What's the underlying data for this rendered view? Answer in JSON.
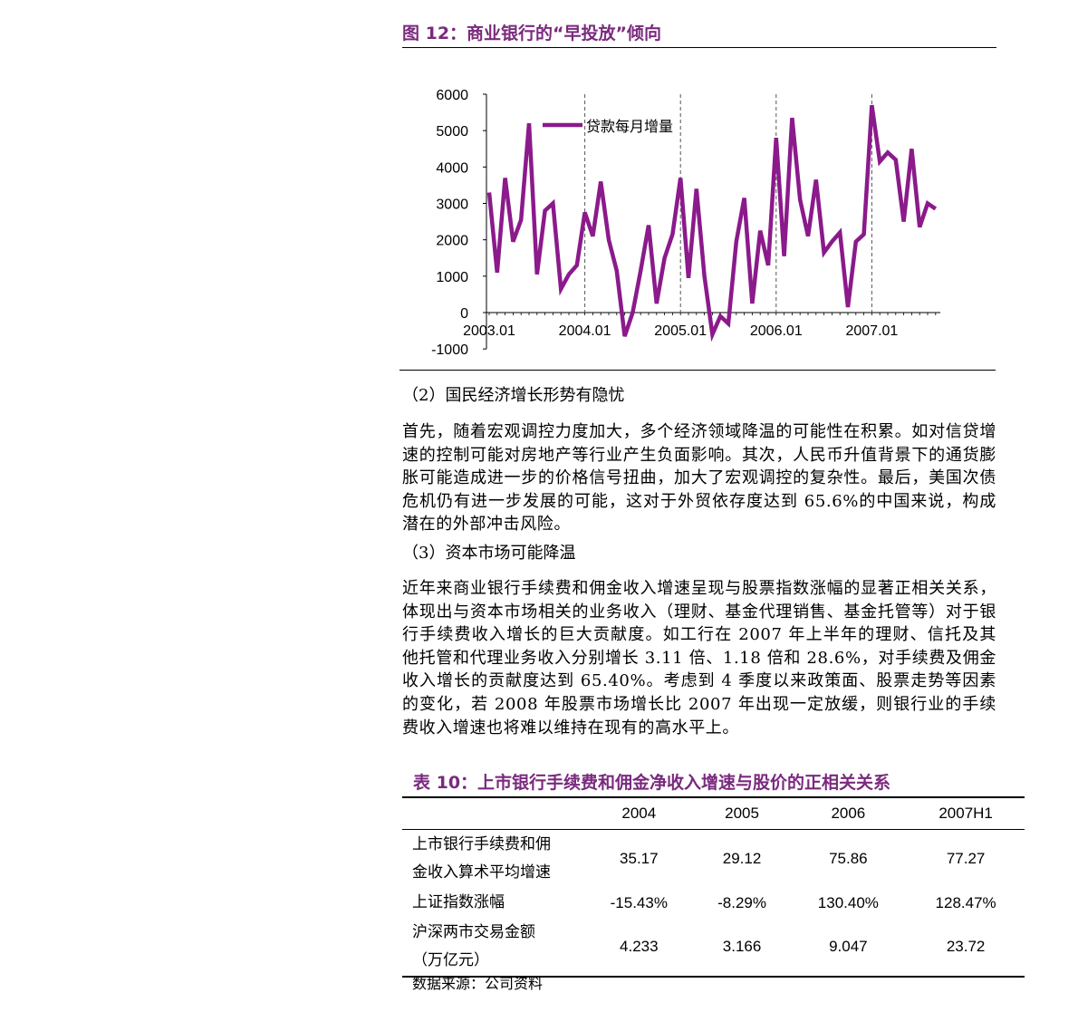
{
  "figure": {
    "title": "图 12：商业银行的“早投放”倾向"
  },
  "chart_data": {
    "type": "line",
    "title": "",
    "xlabel": "",
    "ylabel": "",
    "ylim": [
      -1000,
      6000
    ],
    "y_ticks": [
      "6000",
      "5000",
      "4000",
      "3000",
      "2000",
      "1000",
      "0",
      "-1000"
    ],
    "x_tick_labels": [
      "2003.01",
      "2004.01",
      "2005.01",
      "2006.01",
      "2007.01"
    ],
    "legend_position": "top-left",
    "grid": false,
    "line_color": "#8B1A8B",
    "series": [
      {
        "name": "贷款每月增量",
        "x": [
          "2003.01",
          "2003.02",
          "2003.03",
          "2003.04",
          "2003.05",
          "2003.06",
          "2003.07",
          "2003.08",
          "2003.09",
          "2003.10",
          "2003.11",
          "2003.12",
          "2004.01",
          "2004.02",
          "2004.03",
          "2004.04",
          "2004.05",
          "2004.06",
          "2004.07",
          "2004.08",
          "2004.09",
          "2004.10",
          "2004.11",
          "2004.12",
          "2005.01",
          "2005.02",
          "2005.03",
          "2005.04",
          "2005.05",
          "2005.06",
          "2005.07",
          "2005.08",
          "2005.09",
          "2005.10",
          "2005.11",
          "2005.12",
          "2006.01",
          "2006.02",
          "2006.03",
          "2006.04",
          "2006.05",
          "2006.06",
          "2006.07",
          "2006.08",
          "2006.09",
          "2006.10",
          "2006.11",
          "2006.12",
          "2007.01",
          "2007.02",
          "2007.03",
          "2007.04",
          "2007.05",
          "2007.06",
          "2007.07",
          "2007.08",
          "2007.09"
        ],
        "values": [
          3300,
          1100,
          3700,
          1950,
          2550,
          5200,
          1050,
          2800,
          3000,
          650,
          1050,
          1300,
          2750,
          2100,
          3600,
          2000,
          1150,
          -650,
          0,
          1150,
          2400,
          250,
          1500,
          2150,
          3700,
          950,
          3400,
          1000,
          -600,
          -100,
          -300,
          1950,
          3150,
          250,
          2250,
          1300,
          4800,
          1550,
          5350,
          3100,
          2100,
          3650,
          1650,
          1950,
          2200,
          150,
          1950,
          2150,
          5700,
          4150,
          4400,
          4200,
          2500,
          4500,
          2350,
          3000,
          2850
        ]
      }
    ]
  },
  "section2": {
    "heading": "（2）国民经济增长形势有隐忧",
    "paragraph": "首先，随着宏观调控力度加大，多个经济领域降温的可能性在积累。如对信贷增速的控制可能对房地产等行业产生负面影响。其次，人民币升值背景下的通货膨胀可能造成进一步的价格信号扭曲，加大了宏观调控的复杂性。最后，美国次债危机仍有进一步发展的可能，这对于外贸依存度达到 65.6%的中国来说，构成潜在的外部冲击风险。"
  },
  "section3": {
    "heading": "（3）资本市场可能降温",
    "paragraph": "近年来商业银行手续费和佣金收入增速呈现与股票指数涨幅的显著正相关关系，体现出与资本市场相关的业务收入（理财、基金代理销售、基金托管等）对于银行手续费收入增长的巨大贡献度。如工行在 2007 年上半年的理财、信托及其他托管和代理业务收入分别增长 3.11 倍、1.18 倍和 28.6%，对手续费及佣金收入增长的贡献度达到 65.40%。考虑到 4 季度以来政策面、股票走势等因素的变化，若 2008 年股票市场增长比 2007 年出现一定放缓，则银行业的手续费收入增速也将难以维持在现有的高水平上。"
  },
  "table": {
    "title": "表 10：上市银行手续费和佣金净收入增速与股价的正相关关系",
    "headers": [
      "",
      "2004",
      "2005",
      "2006",
      "2007H1"
    ],
    "rows": [
      {
        "label1": "上市银行手续费和佣",
        "label2": "金收入算术平均增速",
        "values": [
          "35.17",
          "29.12",
          "75.86",
          "77.27"
        ]
      },
      {
        "label1": "上证指数涨幅",
        "label2": "",
        "values": [
          "-15.43%",
          "-8.29%",
          "130.40%",
          "128.47%"
        ]
      },
      {
        "label1": "沪深两市交易金额",
        "label2": "（万亿元）",
        "values": [
          "4.233",
          "3.166",
          "9.047",
          "23.72"
        ]
      }
    ],
    "source": "数据来源：公司资料"
  }
}
